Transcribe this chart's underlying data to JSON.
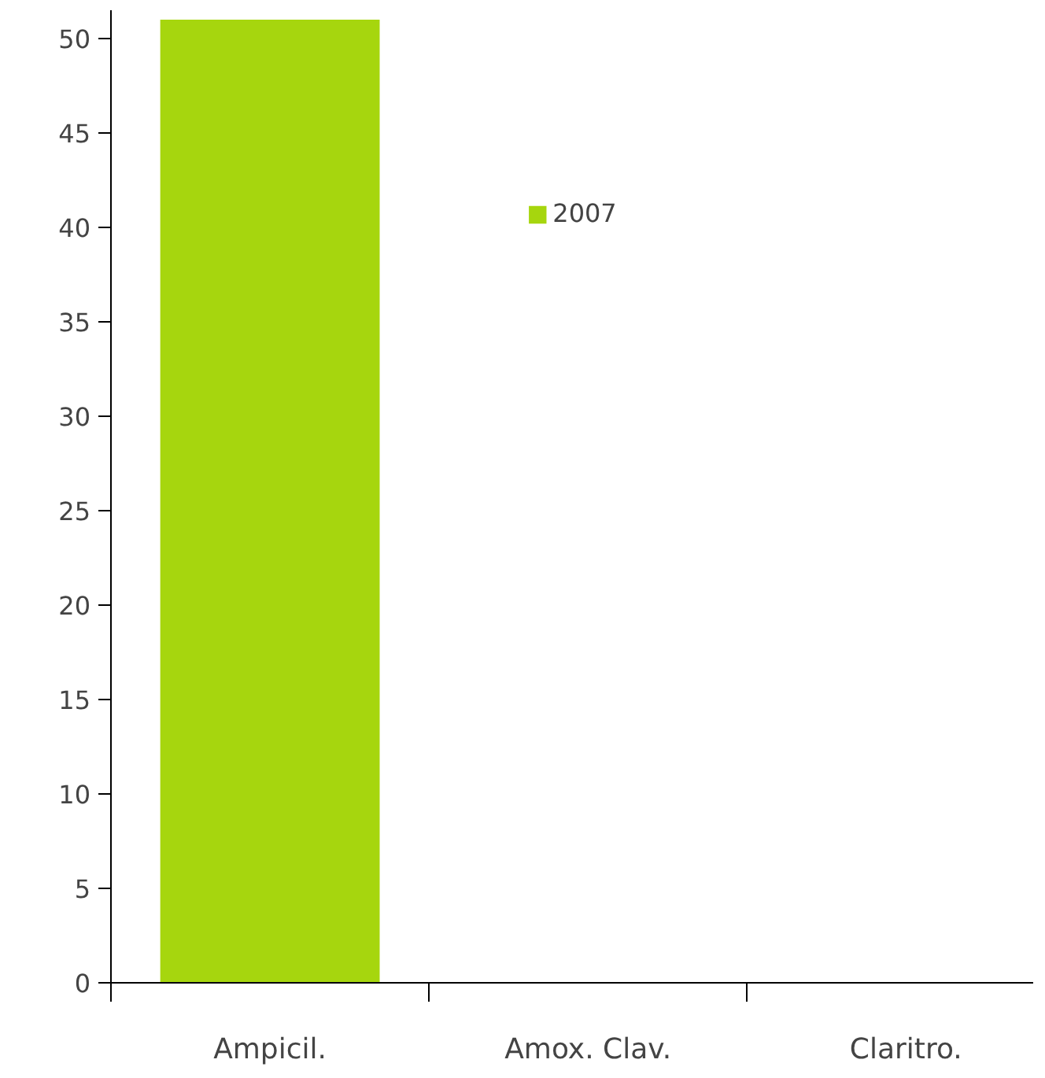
{
  "chart_data": {
    "type": "bar",
    "categories": [
      "Ampicil.",
      "Amox. Clav.",
      "Claritro."
    ],
    "series": [
      {
        "name": "2007",
        "color": "#a6d60e",
        "values": [
          51,
          null,
          null
        ]
      }
    ],
    "ylim": [
      0,
      51.5
    ],
    "yticks": [
      0,
      5,
      10,
      15,
      20,
      25,
      30,
      35,
      40,
      45,
      50
    ],
    "grid": false,
    "legend": "top"
  }
}
